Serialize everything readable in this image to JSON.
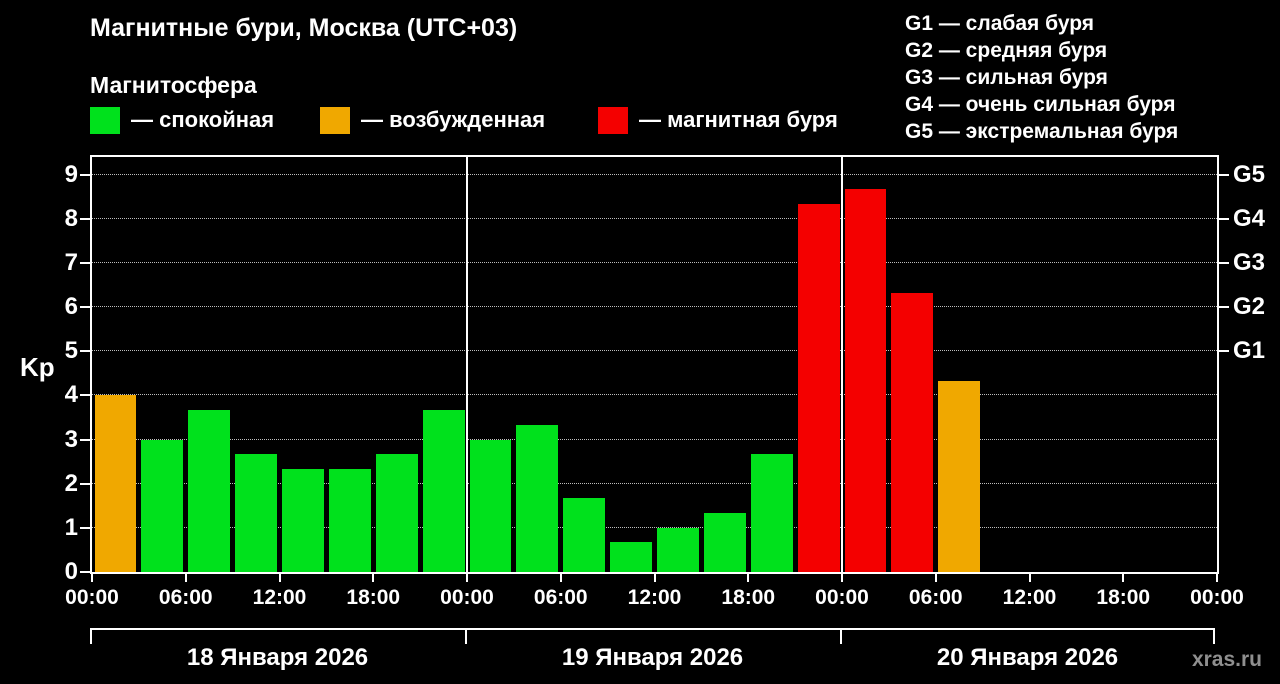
{
  "header": {
    "title": "Магнитные бури, Москва (UTC+03)",
    "subtitle": "Магнитосфера"
  },
  "legend": {
    "items": [
      {
        "key": "quiet",
        "label": "— спокойная"
      },
      {
        "key": "excited",
        "label": "— возбужденная"
      },
      {
        "key": "storm",
        "label": "— магнитная буря"
      }
    ]
  },
  "g_legend": [
    "G1 — слабая буря",
    "G2 — средняя буря",
    "G3 — сильная буря",
    "G4 — очень сильная буря",
    "G5 — экстремальная буря"
  ],
  "watermark": "xras.ru",
  "chart_data": {
    "type": "bar",
    "ylabel": "Kp",
    "ylim": [
      0,
      9.4
    ],
    "yticks": [
      0,
      1,
      2,
      3,
      4,
      5,
      6,
      7,
      8,
      9
    ],
    "grid": true,
    "background": "#000000",
    "g_levels": [
      {
        "label": "G1",
        "kp": 5
      },
      {
        "label": "G2",
        "kp": 6
      },
      {
        "label": "G3",
        "kp": 7
      },
      {
        "label": "G4",
        "kp": 8
      },
      {
        "label": "G5",
        "kp": 9
      }
    ],
    "x_tick_labels": [
      "00:00",
      "06:00",
      "12:00",
      "18:00",
      "00:00",
      "06:00",
      "12:00",
      "18:00",
      "00:00",
      "06:00",
      "12:00",
      "18:00",
      "00:00"
    ],
    "days": [
      {
        "label": "18 Января 2026",
        "values": [
          4.0,
          3.0,
          3.67,
          2.67,
          2.33,
          2.33,
          2.67,
          3.67
        ]
      },
      {
        "label": "19 Января 2026",
        "values": [
          3.0,
          3.33,
          1.67,
          0.67,
          1.0,
          1.33,
          2.67,
          8.33
        ]
      },
      {
        "label": "20 Января 2026",
        "values": [
          8.67,
          6.33,
          4.33,
          null,
          null,
          null,
          null,
          null
        ]
      }
    ],
    "thresholds": {
      "excited_min": 4,
      "storm_min": 5
    },
    "colors": {
      "quiet": "#00e11c",
      "excited": "#f0a800",
      "storm": "#f40000"
    }
  }
}
